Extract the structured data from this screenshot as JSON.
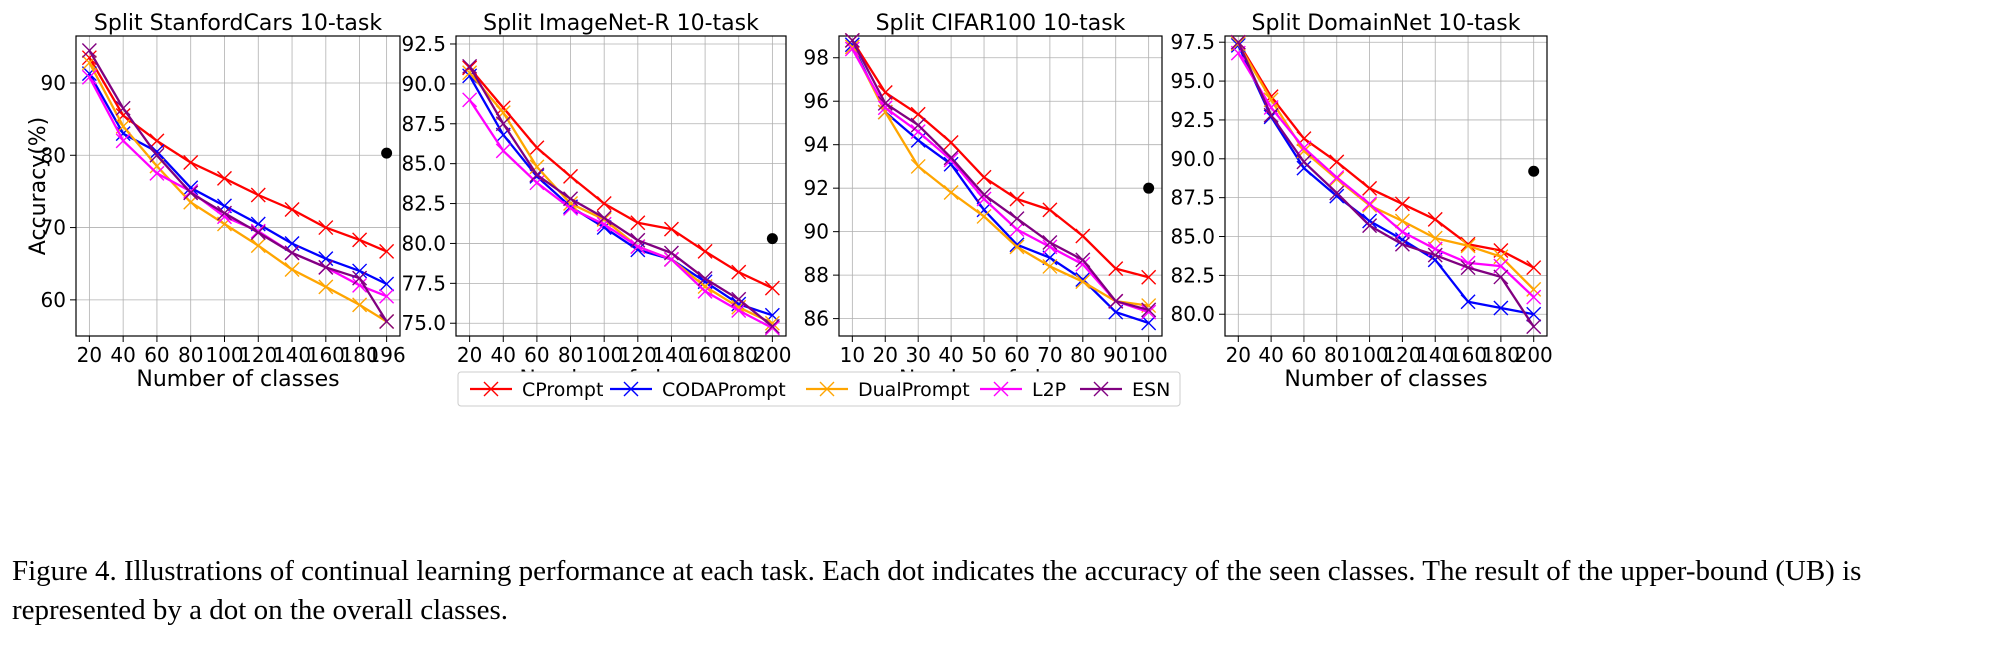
{
  "caption": "Figure 4. Illustrations of continual learning performance at each task. Each dot indicates the accuracy of the seen classes. The result of the upper-bound (UB) is represented by a dot on the overall classes.",
  "legend": [
    {
      "name": "CPrompt",
      "color": "#ff0000"
    },
    {
      "name": "CODAPrompt",
      "color": "#0000ff"
    },
    {
      "name": "DualPrompt",
      "color": "#ffa500"
    },
    {
      "name": "L2P",
      "color": "#ff00ff"
    },
    {
      "name": "ESN",
      "color": "#800080"
    }
  ],
  "chart_data": [
    {
      "type": "line",
      "title": "Split StanfordCars 10-task",
      "xlabel": "Number of classes",
      "ylabel": "Accuracy(%)",
      "x": [
        20,
        40,
        60,
        80,
        100,
        120,
        140,
        160,
        180,
        196
      ],
      "xticks": [
        "20",
        "40",
        "60",
        "80",
        "100",
        "120",
        "140",
        "160",
        "180",
        "196"
      ],
      "yticks": [
        60,
        70,
        80,
        90
      ],
      "ytick_labels": [
        "60",
        "70",
        "80",
        "90"
      ],
      "ylim": [
        55,
        96.5
      ],
      "grid": true,
      "ub": {
        "x": 196,
        "y": 80.3
      },
      "series": [
        {
          "name": "CPrompt",
          "values": [
            93.5,
            85.5,
            82.0,
            79.0,
            76.8,
            74.5,
            72.5,
            70.0,
            68.3,
            66.7
          ]
        },
        {
          "name": "CODAPrompt",
          "values": [
            91.3,
            83.0,
            80.5,
            75.5,
            73.0,
            70.5,
            67.8,
            65.7,
            64.0,
            62.2
          ]
        },
        {
          "name": "DualPrompt",
          "values": [
            92.8,
            84.0,
            78.5,
            73.5,
            70.5,
            67.5,
            64.2,
            61.8,
            59.3,
            57.0
          ]
        },
        {
          "name": "L2P",
          "values": [
            90.8,
            82.0,
            77.5,
            75.0,
            71.5,
            69.5,
            66.5,
            64.5,
            62.0,
            60.5
          ]
        },
        {
          "name": "ESN",
          "values": [
            94.5,
            86.5,
            80.0,
            74.8,
            72.0,
            69.3,
            66.5,
            64.5,
            63.0,
            57.0
          ]
        }
      ]
    },
    {
      "type": "line",
      "title": "Split ImageNet-R 10-task",
      "xlabel": "Number of classes",
      "ylabel": "",
      "x": [
        20,
        40,
        60,
        80,
        100,
        120,
        140,
        160,
        180,
        200
      ],
      "xticks": [
        "20",
        "40",
        "60",
        "80",
        "100",
        "120",
        "140",
        "160",
        "180",
        "200"
      ],
      "yticks": [
        75.0,
        77.5,
        80.0,
        82.5,
        85.0,
        87.5,
        90.0,
        92.5
      ],
      "ytick_labels": [
        "75.0",
        "77.5",
        "80.0",
        "82.5",
        "85.0",
        "87.5",
        "90.0",
        "92.5"
      ],
      "ylim": [
        74.2,
        93.0
      ],
      "grid": true,
      "ub": {
        "x": 200,
        "y": 80.3
      },
      "series": [
        {
          "name": "CPrompt",
          "values": [
            91.0,
            88.5,
            86.0,
            84.2,
            82.5,
            81.3,
            80.9,
            79.5,
            78.2,
            77.2
          ]
        },
        {
          "name": "CODAPrompt",
          "values": [
            90.5,
            86.8,
            84.2,
            82.3,
            81.0,
            79.6,
            79.0,
            77.6,
            76.2,
            75.5
          ]
        },
        {
          "name": "DualPrompt",
          "values": [
            90.7,
            88.2,
            84.8,
            82.5,
            81.5,
            79.8,
            79.0,
            77.3,
            76.0,
            75.0
          ]
        },
        {
          "name": "L2P",
          "values": [
            89.0,
            85.8,
            83.8,
            82.2,
            81.2,
            79.8,
            79.0,
            77.0,
            75.8,
            74.7
          ]
        },
        {
          "name": "ESN",
          "values": [
            91.1,
            87.5,
            84.3,
            82.8,
            81.6,
            80.2,
            79.4,
            77.8,
            76.5,
            74.8
          ]
        }
      ]
    },
    {
      "type": "line",
      "title": "Split CIFAR100 10-task",
      "xlabel": "Number of classes",
      "ylabel": "",
      "x": [
        10,
        20,
        30,
        40,
        50,
        60,
        70,
        80,
        90,
        100
      ],
      "xticks": [
        "10",
        "20",
        "30",
        "40",
        "50",
        "60",
        "70",
        "80",
        "90",
        "100"
      ],
      "yticks": [
        86,
        88,
        90,
        92,
        94,
        96,
        98
      ],
      "ytick_labels": [
        "86",
        "88",
        "90",
        "92",
        "94",
        "96",
        "98"
      ],
      "ylim": [
        85.2,
        99.0
      ],
      "grid": true,
      "ub": {
        "x": 100,
        "y": 92.0
      },
      "series": [
        {
          "name": "CPrompt",
          "values": [
            98.8,
            96.4,
            95.4,
            94.1,
            92.5,
            91.5,
            91.0,
            89.8,
            88.3,
            87.9
          ]
        },
        {
          "name": "CODAPrompt",
          "values": [
            98.6,
            95.5,
            94.2,
            93.1,
            91.0,
            89.4,
            88.8,
            87.8,
            86.3,
            85.8
          ]
        },
        {
          "name": "DualPrompt",
          "values": [
            98.5,
            95.5,
            93.0,
            91.8,
            90.7,
            89.3,
            88.4,
            87.7,
            86.8,
            86.6
          ]
        },
        {
          "name": "L2P",
          "values": [
            98.4,
            95.7,
            94.6,
            93.3,
            91.5,
            90.1,
            89.3,
            88.5,
            86.8,
            86.3
          ]
        },
        {
          "name": "ESN",
          "values": [
            98.8,
            95.9,
            94.9,
            93.4,
            91.7,
            90.6,
            89.5,
            88.7,
            86.8,
            86.4
          ]
        }
      ]
    },
    {
      "type": "line",
      "title": "Split DomainNet 10-task",
      "xlabel": "Number of classes",
      "ylabel": "",
      "x": [
        20,
        40,
        60,
        80,
        100,
        120,
        140,
        160,
        180,
        200
      ],
      "xticks": [
        "20",
        "40",
        "60",
        "80",
        "100",
        "120",
        "140",
        "160",
        "180",
        "200"
      ],
      "yticks": [
        80.0,
        82.5,
        85.0,
        87.5,
        90.0,
        92.5,
        95.0,
        97.5
      ],
      "ytick_labels": [
        "80.0",
        "82.5",
        "85.0",
        "87.5",
        "90.0",
        "92.5",
        "95.0",
        "97.5"
      ],
      "ylim": [
        78.6,
        97.9
      ],
      "grid": true,
      "ub": {
        "x": 200,
        "y": 89.2
      },
      "series": [
        {
          "name": "CPrompt",
          "values": [
            97.5,
            94.0,
            91.3,
            89.8,
            88.1,
            87.1,
            86.1,
            84.5,
            84.1,
            83.0
          ]
        },
        {
          "name": "CODAPrompt",
          "values": [
            97.3,
            92.7,
            89.4,
            87.6,
            86.0,
            84.8,
            83.5,
            80.8,
            80.4,
            80.0
          ]
        },
        {
          "name": "DualPrompt",
          "values": [
            97.4,
            93.8,
            90.5,
            88.7,
            87.0,
            86.0,
            84.9,
            84.4,
            83.7,
            81.6
          ]
        },
        {
          "name": "L2P",
          "values": [
            96.8,
            93.3,
            90.7,
            88.8,
            87.1,
            85.3,
            84.2,
            83.3,
            83.1,
            81.1
          ]
        },
        {
          "name": "ESN",
          "values": [
            97.5,
            92.8,
            89.8,
            87.8,
            85.7,
            84.5,
            83.8,
            83.0,
            82.4,
            79.2
          ]
        }
      ]
    }
  ]
}
